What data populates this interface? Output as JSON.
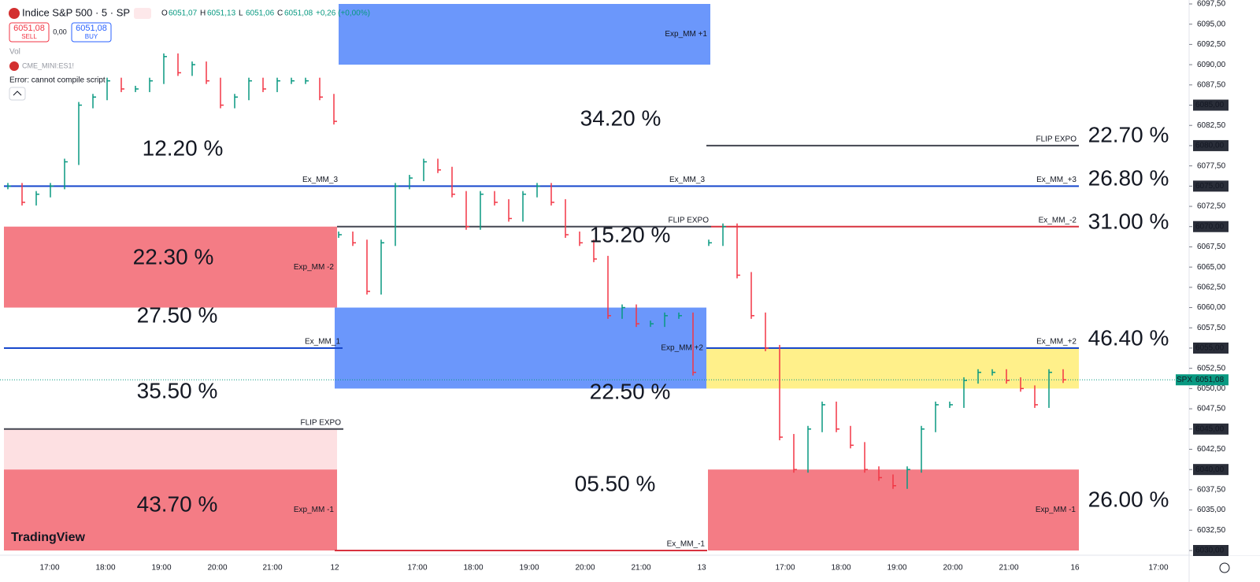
{
  "header": {
    "symbol": "Indice S&P 500 · 5 · SP",
    "ohlc": [
      {
        "label": "O",
        "value": "6051,07"
      },
      {
        "label": "H",
        "value": "6051,13"
      },
      {
        "label": "L",
        "value": "6051,06"
      },
      {
        "label": "C",
        "value": "6051,08"
      }
    ],
    "change": "+0,26 (+0,00%)",
    "sell_price": "6051,08",
    "sell_label": "SELL",
    "spread": "0,00",
    "buy_price": "6051,08",
    "buy_label": "BUY",
    "volume_label": "Vol",
    "script_symbol": "CME_MINI:ES1!",
    "error": "Error: cannot compile script",
    "logo": "TradingView"
  },
  "price_axis": {
    "ylim": [
      6030,
      6097.5
    ],
    "ticks": [
      {
        "value": 6097.5,
        "label": "6097,50"
      },
      {
        "value": 6095,
        "label": "6095,00"
      },
      {
        "value": 6092.5,
        "label": "6092,50"
      },
      {
        "value": 6090,
        "label": "6090,00"
      },
      {
        "value": 6087.5,
        "label": "6087,50"
      },
      {
        "value": 6085,
        "label": "6085,00"
      },
      {
        "value": 6082.5,
        "label": "6082,50"
      },
      {
        "value": 6080,
        "label": "6080,00"
      },
      {
        "value": 6077.5,
        "label": "6077,50"
      },
      {
        "value": 6075,
        "label": "6075,00"
      },
      {
        "value": 6072.5,
        "label": "6072,50"
      },
      {
        "value": 6070,
        "label": "6070,00"
      },
      {
        "value": 6067.5,
        "label": "6067,50"
      },
      {
        "value": 6065,
        "label": "6065,00"
      },
      {
        "value": 6062.5,
        "label": "6062,50"
      },
      {
        "value": 6060,
        "label": "6060,00"
      },
      {
        "value": 6057.5,
        "label": "6057,50"
      },
      {
        "value": 6055,
        "label": "6055,00"
      },
      {
        "value": 6052.5,
        "label": "6052,50"
      },
      {
        "value": 6050,
        "label": "6050,00"
      },
      {
        "value": 6047.5,
        "label": "6047,50"
      },
      {
        "value": 6045,
        "label": "6045,00"
      },
      {
        "value": 6042.5,
        "label": "6042,50"
      },
      {
        "value": 6040,
        "label": "6040,00"
      },
      {
        "value": 6037.5,
        "label": "6037,50"
      },
      {
        "value": 6035,
        "label": "6035,00"
      },
      {
        "value": 6032.5,
        "label": "6032,50"
      },
      {
        "value": 6030,
        "label": "6030,00"
      }
    ],
    "price_tags": [
      {
        "value": 6085,
        "label": "6085,00"
      },
      {
        "value": 6080,
        "label": "6080,00"
      },
      {
        "value": 6075,
        "label": "6075,00"
      },
      {
        "value": 6070,
        "label": "6070,00"
      },
      {
        "value": 6055,
        "label": "6055,00"
      },
      {
        "value": 6045,
        "label": "6045,00"
      },
      {
        "value": 6040,
        "label": "6040,00"
      },
      {
        "value": 6030,
        "label": "6030,00"
      }
    ],
    "last_price": {
      "symbol": "SPX",
      "value": 6051.08,
      "label": "6051,08",
      "color": "#089981"
    }
  },
  "time_axis": {
    "labels": [
      "17:00",
      "18:00",
      "19:00",
      "20:00",
      "21:00",
      "12",
      "17:00",
      "18:00",
      "19:00",
      "20:00",
      "21:00",
      "13",
      "17:00",
      "18:00",
      "19:00",
      "20:00",
      "21:00",
      "16",
      "17:00"
    ]
  },
  "bars": {
    "up_color": "#089981",
    "down_color": "#f23645",
    "sessions": [
      [
        6075,
        6073,
        6074,
        6075,
        6078,
        6085,
        6086,
        6088,
        6087,
        6087,
        6088,
        6091,
        6089,
        6090,
        6088,
        6085,
        6086,
        6088,
        6087,
        6088,
        6088,
        6088,
        6086,
        6083
      ],
      [
        6069,
        6068,
        6062,
        6068,
        6075,
        6076,
        6078,
        6077,
        6074,
        6070,
        6074,
        6073,
        6071,
        6074,
        6075,
        6073,
        6069,
        6068,
        6066,
        6059,
        6060,
        6058,
        6058,
        6059,
        6059,
        6052
      ],
      [
        6068,
        6070,
        6064,
        6059,
        6055,
        6044,
        6040,
        6045,
        6048,
        6045,
        6043,
        6040,
        6039,
        6038,
        6040,
        6045,
        6048,
        6048,
        6051,
        6052,
        6052,
        6051,
        6050,
        6048,
        6052,
        6051.08
      ]
    ]
  },
  "zones": [
    {
      "low": 6090,
      "high": 6097.5,
      "color": "#6b97fb",
      "label": "Exp_MM +1"
    },
    {
      "low": 6060,
      "high": 6070,
      "color": "#f47c85",
      "label": "Exp_MM -2"
    },
    {
      "low": 6050,
      "high": 6060,
      "color": "#6b97fb",
      "label": "Exp_MM +2"
    },
    {
      "low": 6050,
      "high": 6055,
      "color": "#fff08a"
    },
    {
      "low": 6040,
      "high": 6045,
      "color": "#fde0e2"
    },
    {
      "low": 6030,
      "high": 6040,
      "color": "#f47c85",
      "label": "Exp_MM -1"
    },
    {
      "low": 6030,
      "high": 6040,
      "color": "#f47c85",
      "label": "Exp_MM -1"
    }
  ],
  "levels": [
    {
      "price": 6075,
      "color": "#1848cc",
      "label": "Ex_MM_3"
    },
    {
      "price": 6075,
      "color": "#1848cc",
      "label": "Ex_MM_3"
    },
    {
      "price": 6075,
      "color": "#1848cc",
      "label": "Ex_MM_+3"
    },
    {
      "price": 6070,
      "color": "#434651",
      "label": "FLIP EXPO"
    },
    {
      "price": 6080,
      "color": "#434651",
      "label": "FLIP EXPO"
    },
    {
      "price": 6045,
      "color": "#434651",
      "label": "FLIP EXPO"
    },
    {
      "price": 6070,
      "color": "#d8323f",
      "label": "Ex_MM_-2"
    },
    {
      "price": 6055,
      "color": "#1848cc",
      "label": "Ex_MM_1"
    },
    {
      "price": 6055,
      "color": "#1848cc",
      "label": "Ex_MM_+2"
    },
    {
      "price": 6030,
      "color": "#d8323f",
      "label": "Ex_MM_-1"
    }
  ],
  "percent_labels": [
    {
      "text": "12.20 %",
      "color": "#b7c9f7"
    },
    {
      "text": "22.30 %",
      "color": "#f25a68"
    },
    {
      "text": "27.50 %",
      "color": "#b7c9f7"
    },
    {
      "text": "35.50 %",
      "color": "#a3a3a3"
    },
    {
      "text": "43.70 %",
      "color": "#f25a68"
    },
    {
      "text": "34.20 %",
      "color": "#b7c9f7"
    },
    {
      "text": "15.20 %",
      "color": "#a3a3a3"
    },
    {
      "text": "22.50 %",
      "color": "#b7c9f7"
    },
    {
      "text": "05.50 %",
      "color": "#f8b9bf"
    },
    {
      "text": "22.70 %",
      "color": "#a3a3a3"
    },
    {
      "text": "26.80 %",
      "color": "#b7c9f7"
    },
    {
      "text": "31.00 %",
      "color": "#f8b9bf"
    },
    {
      "text": "46.40 %",
      "color": "#b7c9f7"
    },
    {
      "text": "26.00 %",
      "color": "#f8b9bf"
    }
  ]
}
